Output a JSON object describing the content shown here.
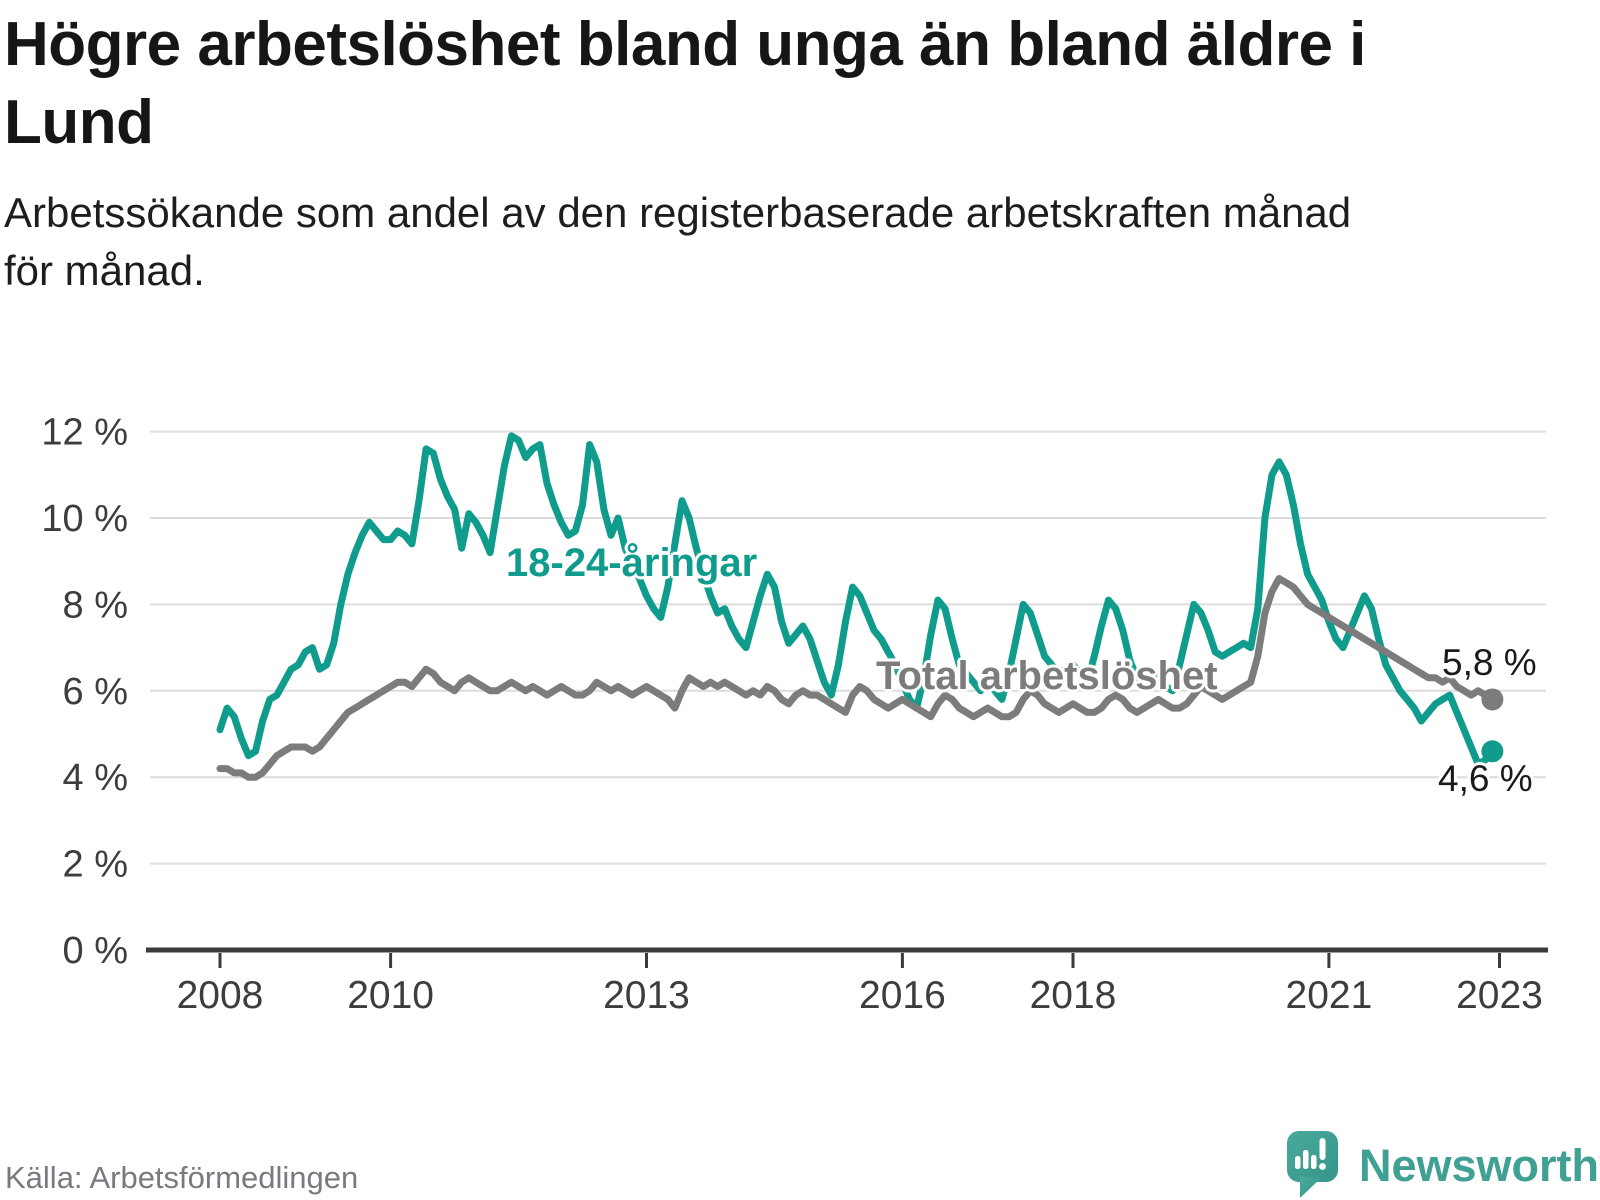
{
  "header": {
    "title_lines": [
      "Högre arbetslöshet bland unga än bland äldre i",
      "Lund"
    ],
    "subtitle_lines": [
      "Arbetssökande som andel av den registerbaserade arbetskraften månad",
      "för månad."
    ]
  },
  "footer": {
    "source": "Källa: Arbetsförmedlingen",
    "brand_name": "Newsworthy",
    "brand_icon": "speech-bubble-bar-chart-icon"
  },
  "colors": {
    "background": "#ffffff",
    "title_text": "#161616",
    "subtitle_text": "#1d1d1d",
    "tick_text": "#3d3d3d",
    "grid_line": "#dcdcdc",
    "axis_line": "#3b3b3b",
    "end_label_text": "#1a1a1a",
    "source_text": "#7a7880",
    "brand_teal": "#3fa093",
    "youth_line": "#0f9c8d",
    "total_line": "#7c7c7c"
  },
  "chart_data": {
    "type": "line",
    "title": "Högre arbetslöshet bland unga än bland äldre i Lund",
    "subtitle": "Arbetssökande som andel av den registerbaserade arbetskraften månad för månad.",
    "unit": "percent",
    "frequency": "monthly",
    "x_start": "2008-01",
    "x_end": "2022-12",
    "ylim": [
      0,
      12
    ],
    "grid": "horizontal",
    "y_ticks": [
      0,
      2,
      4,
      6,
      8,
      10,
      12
    ],
    "y_tick_labels": [
      "0 %",
      "2 %",
      "4 %",
      "6 %",
      "8 %",
      "10 %",
      "12 %"
    ],
    "x_ticks": [
      {
        "year": 2008,
        "label": "2008"
      },
      {
        "year": 2010,
        "label": "2010"
      },
      {
        "year": 2013,
        "label": "2013"
      },
      {
        "year": 2016,
        "label": "2016"
      },
      {
        "year": 2018,
        "label": "2018"
      },
      {
        "year": 2021,
        "label": "2021"
      },
      {
        "year": 2023,
        "label": "2023"
      }
    ],
    "series": [
      {
        "id": "youth",
        "name": "18-24-åringar",
        "color": "#0f9c8d",
        "end_label": "4,6 %",
        "last_value": 4.6,
        "values": [
          5.1,
          5.6,
          5.4,
          4.9,
          4.5,
          4.6,
          5.3,
          5.8,
          5.9,
          6.2,
          6.5,
          6.6,
          6.9,
          7.0,
          6.5,
          6.6,
          7.1,
          8.0,
          8.7,
          9.2,
          9.6,
          9.9,
          9.7,
          9.5,
          9.5,
          9.7,
          9.6,
          9.4,
          10.4,
          11.6,
          11.5,
          10.9,
          10.5,
          10.2,
          9.3,
          10.1,
          9.9,
          9.6,
          9.2,
          10.2,
          11.2,
          11.9,
          11.8,
          11.4,
          11.6,
          11.7,
          10.8,
          10.3,
          9.9,
          9.6,
          9.7,
          10.3,
          11.7,
          11.3,
          10.2,
          9.6,
          10.0,
          9.3,
          8.9,
          8.6,
          8.2,
          7.9,
          7.7,
          8.4,
          9.4,
          10.4,
          10.0,
          9.3,
          8.7,
          8.2,
          7.8,
          7.9,
          7.5,
          7.2,
          7.0,
          7.6,
          8.2,
          8.7,
          8.4,
          7.6,
          7.1,
          7.3,
          7.5,
          7.2,
          6.7,
          6.2,
          5.9,
          6.6,
          7.6,
          8.4,
          8.2,
          7.8,
          7.4,
          7.2,
          6.9,
          6.6,
          6.2,
          5.8,
          5.6,
          6.3,
          7.3,
          8.1,
          7.9,
          7.2,
          6.6,
          6.4,
          6.2,
          6.0,
          6.3,
          6.0,
          5.8,
          6.4,
          7.2,
          8.0,
          7.8,
          7.3,
          6.8,
          6.6,
          6.4,
          6.5,
          6.6,
          6.4,
          6.2,
          6.8,
          7.5,
          8.1,
          7.9,
          7.4,
          6.7,
          6.3,
          6.2,
          6.4,
          6.3,
          6.1,
          6.0,
          6.6,
          7.3,
          8.0,
          7.8,
          7.4,
          6.9,
          6.8,
          6.9,
          7.0,
          7.1,
          7.0,
          7.9,
          10.0,
          11.0,
          11.3,
          11.0,
          10.3,
          9.4,
          8.7,
          8.4,
          8.1,
          7.6,
          7.2,
          7.0,
          7.4,
          7.8,
          8.2,
          7.9,
          7.2,
          6.6,
          6.3,
          6.0,
          5.8,
          5.6,
          5.3,
          5.5,
          5.7,
          5.8,
          5.9,
          5.5,
          5.1,
          4.7,
          4.3,
          4.4,
          4.6
        ]
      },
      {
        "id": "total",
        "name": "Total arbetslöshet",
        "color": "#7c7c7c",
        "end_label": "5,8 %",
        "last_value": 5.8,
        "values": [
          4.2,
          4.2,
          4.1,
          4.1,
          4.0,
          4.0,
          4.1,
          4.3,
          4.5,
          4.6,
          4.7,
          4.7,
          4.7,
          4.6,
          4.7,
          4.9,
          5.1,
          5.3,
          5.5,
          5.6,
          5.7,
          5.8,
          5.9,
          6.0,
          6.1,
          6.2,
          6.2,
          6.1,
          6.3,
          6.5,
          6.4,
          6.2,
          6.1,
          6.0,
          6.2,
          6.3,
          6.2,
          6.1,
          6.0,
          6.0,
          6.1,
          6.2,
          6.1,
          6.0,
          6.1,
          6.0,
          5.9,
          6.0,
          6.1,
          6.0,
          5.9,
          5.9,
          6.0,
          6.2,
          6.1,
          6.0,
          6.1,
          6.0,
          5.9,
          6.0,
          6.1,
          6.0,
          5.9,
          5.8,
          5.6,
          6.0,
          6.3,
          6.2,
          6.1,
          6.2,
          6.1,
          6.2,
          6.1,
          6.0,
          5.9,
          6.0,
          5.9,
          6.1,
          6.0,
          5.8,
          5.7,
          5.9,
          6.0,
          5.9,
          5.9,
          5.8,
          5.7,
          5.6,
          5.5,
          5.9,
          6.1,
          6.0,
          5.8,
          5.7,
          5.6,
          5.7,
          5.8,
          5.7,
          5.6,
          5.5,
          5.4,
          5.7,
          5.9,
          5.8,
          5.6,
          5.5,
          5.4,
          5.5,
          5.6,
          5.5,
          5.4,
          5.4,
          5.5,
          5.8,
          6.0,
          5.9,
          5.7,
          5.6,
          5.5,
          5.6,
          5.7,
          5.6,
          5.5,
          5.5,
          5.6,
          5.8,
          5.9,
          5.8,
          5.6,
          5.5,
          5.6,
          5.7,
          5.8,
          5.7,
          5.6,
          5.6,
          5.7,
          5.9,
          6.1,
          6.0,
          5.9,
          5.8,
          5.9,
          6.0,
          6.1,
          6.2,
          6.8,
          7.8,
          8.3,
          8.6,
          8.5,
          8.4,
          8.2,
          8.0,
          7.9,
          7.8,
          7.7,
          7.6,
          7.5,
          7.4,
          7.3,
          7.2,
          7.1,
          7.0,
          6.9,
          6.8,
          6.7,
          6.6,
          6.5,
          6.4,
          6.3,
          6.3,
          6.2,
          6.3,
          6.1,
          6.0,
          5.9,
          6.0,
          5.9,
          5.8
        ]
      }
    ]
  }
}
